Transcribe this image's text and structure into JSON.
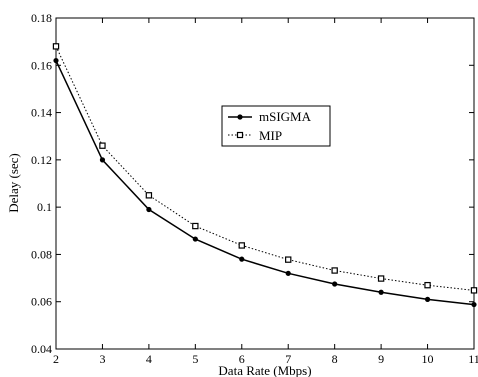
{
  "chart_data": {
    "type": "line",
    "title": "",
    "xlabel": "Data Rate (Mbps)",
    "ylabel": "Delay (sec)",
    "xlim": [
      2,
      11
    ],
    "ylim": [
      0.04,
      0.18
    ],
    "x_ticks": [
      2,
      3,
      4,
      5,
      6,
      7,
      8,
      9,
      10,
      11
    ],
    "y_ticks": [
      0.04,
      0.06,
      0.08,
      0.1,
      0.12,
      0.14,
      0.16,
      0.18
    ],
    "y_tick_labels": [
      "0.04",
      "0.06",
      "0.08",
      "0.1",
      "0.12",
      "0.14",
      "0.16",
      "0.18"
    ],
    "grid": false,
    "legend_position": "upper-center",
    "x": [
      2,
      3,
      4,
      5,
      6,
      7,
      8,
      9,
      10,
      11
    ],
    "series": [
      {
        "name": "mSIGMA",
        "style": "solid",
        "marker": "filled-circle",
        "values": [
          0.162,
          0.12,
          0.099,
          0.0865,
          0.078,
          0.072,
          0.0675,
          0.064,
          0.061,
          0.0588
        ]
      },
      {
        "name": "MIP",
        "style": "dotted",
        "marker": "open-square",
        "values": [
          0.168,
          0.126,
          0.105,
          0.092,
          0.0838,
          0.0778,
          0.0732,
          0.0698,
          0.067,
          0.0648
        ]
      }
    ]
  }
}
